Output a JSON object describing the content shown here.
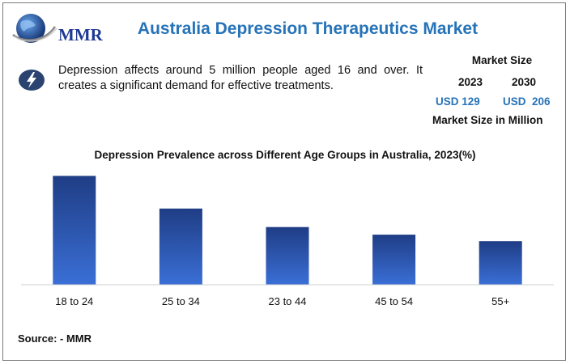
{
  "brand": {
    "name": "MMR"
  },
  "header": {
    "title": "Australia Depression Therapeutics Market"
  },
  "info": {
    "icon": "lightning-bolt-icon",
    "text": "Depression affects around 5 million people aged 16 and over. It creates a significant demand for effective treatments."
  },
  "market_size": {
    "label": "Market Size",
    "year_start": "2023",
    "year_end": "2030",
    "value_start": "USD 129",
    "value_end": "USD  206",
    "unit_label": "Market Size in Million"
  },
  "colors": {
    "accent": "#2673b8",
    "bar_top": "#1f3d85",
    "bar_bottom": "#3a6fd6",
    "logo": "#1f3a93"
  },
  "chart_data": {
    "type": "bar",
    "title": "Depression Prevalence across Different Age Groups in Australia, 2023(%)",
    "categories": [
      "18 to 24",
      "25 to 34",
      "23 to 44",
      "45 to 54",
      "55+"
    ],
    "values": [
      10,
      7,
      5.3,
      4.6,
      4
    ],
    "ylim": [
      0,
      11
    ],
    "xlabel": "",
    "ylabel": "",
    "grid": false,
    "legend": "none"
  },
  "footer": {
    "source": "Source: - MMR"
  }
}
